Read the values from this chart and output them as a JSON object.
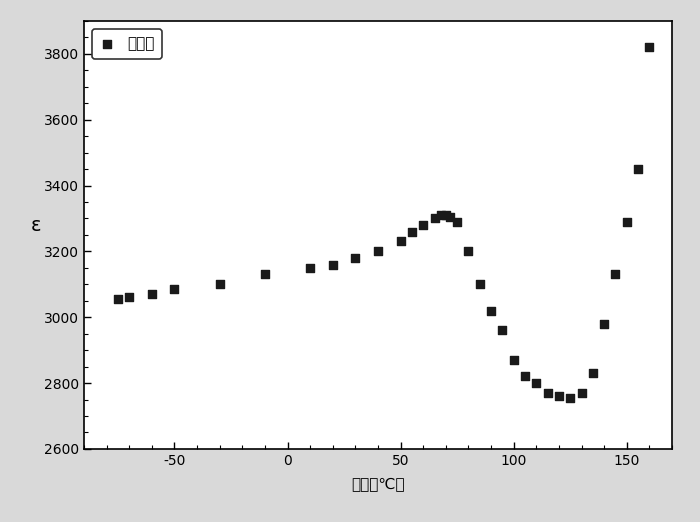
{
  "x": [
    -75,
    -70,
    -60,
    -50,
    -30,
    -10,
    10,
    20,
    30,
    40,
    50,
    55,
    60,
    65,
    68,
    70,
    72,
    75,
    80,
    85,
    90,
    95,
    100,
    105,
    110,
    115,
    120,
    125,
    130,
    135,
    140,
    145,
    150,
    155,
    160
  ],
  "y": [
    3055,
    3060,
    3070,
    3085,
    3100,
    3130,
    3150,
    3160,
    3180,
    3200,
    3230,
    3260,
    3280,
    3300,
    3310,
    3310,
    3305,
    3290,
    3200,
    3100,
    3020,
    2960,
    2870,
    2820,
    2800,
    2770,
    2760,
    2755,
    2770,
    2830,
    2980,
    3130,
    3290,
    3450,
    3820
  ],
  "xlim": [
    -90,
    170
  ],
  "ylim": [
    2600,
    3900
  ],
  "xticks": [
    -50,
    0,
    50,
    100,
    150
  ],
  "yticks": [
    2600,
    2800,
    3000,
    3200,
    3400,
    3600,
    3800
  ],
  "xlabel": "温度（℃）",
  "ylabel": "ε",
  "legend_label": "样品二",
  "marker_color": "#1a1a1a",
  "fig_facecolor": "#d9d9d9",
  "axes_facecolor": "#ffffff",
  "label_fontsize": 11,
  "tick_fontsize": 10,
  "marker_size": 35
}
